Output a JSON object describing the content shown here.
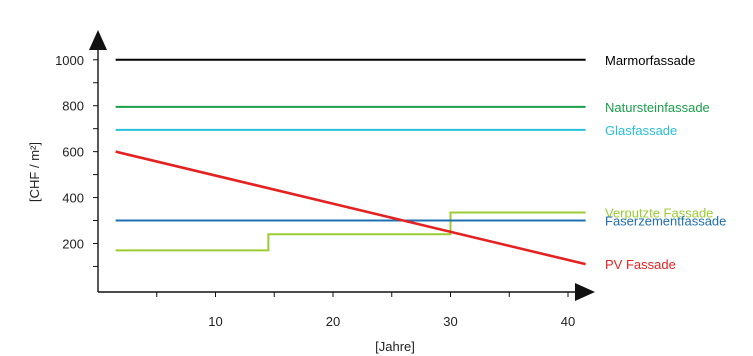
{
  "chart_data": {
    "type": "line",
    "xlabel": "[Jahre]",
    "ylabel": "[CHF / m²]",
    "xlim": [
      0,
      42
    ],
    "ylim": [
      0,
      1100
    ],
    "x_ticks": [
      10,
      20,
      30,
      40
    ],
    "y_ticks": [
      200,
      400,
      600,
      800,
      1000
    ],
    "grid": false,
    "legend": "right-inline",
    "series": [
      {
        "name": "Marmorfassade",
        "color": "#000000",
        "x": [
          1.5,
          41.5
        ],
        "y": [
          1000,
          1000
        ]
      },
      {
        "name": "Natursteinfassade",
        "color": "#1aa04a",
        "x": [
          1.5,
          41.5
        ],
        "y": [
          795,
          795
        ]
      },
      {
        "name": "Glasfassade",
        "color": "#29c0d8",
        "x": [
          1.5,
          41.5
        ],
        "y": [
          695,
          695
        ]
      },
      {
        "name": "Verputzte Fassade",
        "color": "#9ccc33",
        "step": true,
        "x": [
          1.5,
          14.5,
          14.5,
          30,
          30,
          41.5
        ],
        "y": [
          170,
          170,
          240,
          240,
          335,
          335
        ]
      },
      {
        "name": "Faserzementfassade",
        "color": "#1f6fb0",
        "x": [
          1.5,
          41.5
        ],
        "y": [
          300,
          300
        ]
      },
      {
        "name": "PV Fassade",
        "color": "#e32222",
        "x": [
          1.5,
          41.5
        ],
        "y": [
          600,
          110
        ]
      }
    ]
  }
}
